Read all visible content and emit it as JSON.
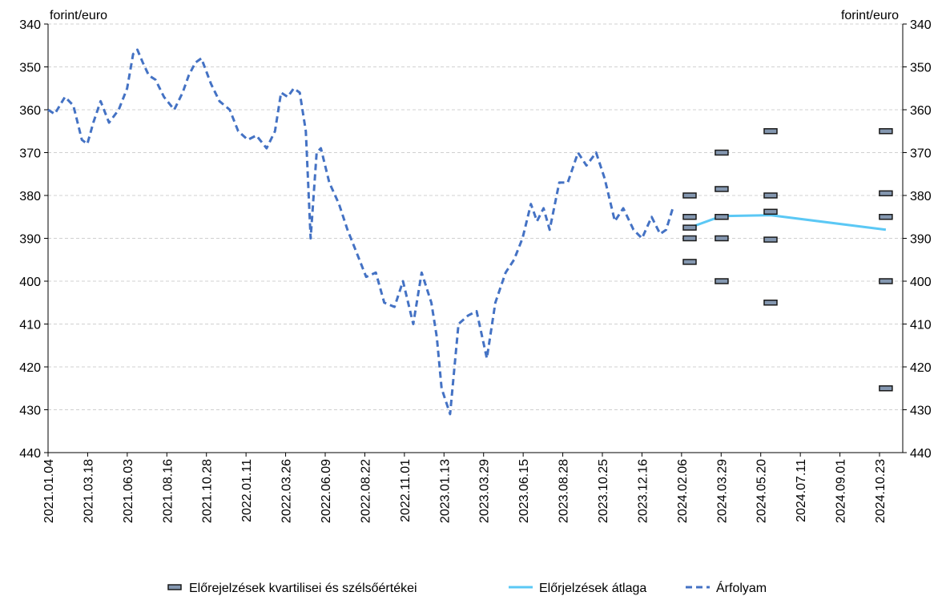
{
  "chart_data": {
    "type": "line",
    "title": "",
    "y_unit_left": "forint/euro",
    "y_unit_right": "forint/euro",
    "y_axis": {
      "min": 340,
      "max": 440,
      "step": 10,
      "inverted": true
    },
    "x_axis": {
      "start": "2021-01-04",
      "end": "2024-11-20",
      "tick_labels": [
        "2021.01.04",
        "2021.03.18",
        "2021.06.03",
        "2021.08.16",
        "2021.10.28",
        "2022.01.11",
        "2022.03.26",
        "2022.06.09",
        "2022.08.22",
        "2022.11.01",
        "2023.01.13",
        "2023.03.29",
        "2023.06.15",
        "2023.08.28",
        "2023.10.25",
        "2023.12.16",
        "2024.02.06",
        "2024.03.29",
        "2024.05.20",
        "2024.07.11",
        "2024.09.01",
        "2024.10.23"
      ]
    },
    "grid": {
      "horizontal": true,
      "style": "dashed"
    },
    "legend_position": "bottom",
    "series": [
      {
        "name": "Árfolyam",
        "style": "dashed",
        "color": "#4472C4",
        "x": [
          "2021-01-04",
          "2021-01-15",
          "2021-02-01",
          "2021-02-15",
          "2021-03-01",
          "2021-03-10",
          "2021-03-20",
          "2021-04-01",
          "2021-04-15",
          "2021-05-01",
          "2021-05-15",
          "2021-05-25",
          "2021-06-01",
          "2021-06-10",
          "2021-06-20",
          "2021-07-01",
          "2021-07-15",
          "2021-08-01",
          "2021-08-15",
          "2021-08-25",
          "2021-09-05",
          "2021-09-15",
          "2021-10-01",
          "2021-10-15",
          "2021-11-01",
          "2021-11-15",
          "2021-12-01",
          "2021-12-15",
          "2022-01-01",
          "2022-01-15",
          "2022-01-25",
          "2022-02-05",
          "2022-02-15",
          "2022-02-25",
          "2022-03-07",
          "2022-03-15",
          "2022-03-25",
          "2022-04-01",
          "2022-04-15",
          "2022-05-01",
          "2022-05-15",
          "2022-06-01",
          "2022-06-15",
          "2022-07-01",
          "2022-07-15",
          "2022-08-01",
          "2022-08-15",
          "2022-09-01",
          "2022-09-15",
          "2022-10-01",
          "2022-10-10",
          "2022-10-18",
          "2022-11-01",
          "2022-11-15",
          "2022-12-01",
          "2022-12-15",
          "2023-01-01",
          "2023-01-15",
          "2023-02-01",
          "2023-02-15",
          "2023-03-01",
          "2023-03-15",
          "2023-03-25",
          "2023-04-05",
          "2023-04-15",
          "2023-05-01",
          "2023-05-15",
          "2023-06-01",
          "2023-06-15",
          "2023-07-01",
          "2023-07-15",
          "2023-08-01",
          "2023-08-15",
          "2023-09-01",
          "2023-09-15",
          "2023-10-01",
          "2023-10-15",
          "2023-10-25",
          "2023-11-05"
        ],
        "y": [
          360,
          361,
          357,
          359,
          367,
          368,
          363,
          358,
          363,
          360,
          355,
          347,
          346,
          349,
          352,
          353,
          357,
          360,
          356,
          352,
          349,
          348,
          354,
          358,
          360,
          365,
          367,
          366,
          369,
          365,
          356,
          357,
          355,
          356,
          365,
          390,
          370,
          369,
          377,
          382,
          388,
          394,
          399,
          398,
          405,
          406,
          400,
          410,
          398,
          405,
          413,
          425,
          431,
          410,
          408,
          407,
          418,
          405,
          398,
          395,
          390,
          382,
          386,
          383,
          388,
          377,
          377,
          370,
          373,
          370,
          376,
          386,
          383,
          388,
          390,
          385,
          389,
          388,
          383
        ]
      },
      {
        "name": "Előrjelzések átlaga",
        "style": "solid",
        "color": "#5BC8F5",
        "x": [
          "2023-12-03",
          "2024-01-25",
          "2024-04-15",
          "2024-10-23"
        ],
        "y": [
          387.5,
          384.8,
          384.6,
          388
        ]
      },
      {
        "name": "Előrejelzések kvartilisei és szélsőértékei",
        "style": "markers",
        "color": "#8497B0",
        "x": [
          "2023-12-03",
          "2024-01-25",
          "2024-04-15",
          "2024-10-23"
        ],
        "values": [
          [
            380,
            385,
            387.5,
            390,
            395.5
          ],
          [
            370,
            378.5,
            385,
            390,
            400
          ],
          [
            365,
            380,
            383.8,
            390.3,
            405
          ],
          [
            365,
            379.5,
            385,
            400,
            425
          ]
        ]
      }
    ],
    "legend": [
      {
        "label": "Előrejelzések kvartilisei és szélsőértékei",
        "style": "markers"
      },
      {
        "label": "Előrjelzések átlaga",
        "style": "solid"
      },
      {
        "label": "Árfolyam",
        "style": "dashed"
      }
    ]
  }
}
